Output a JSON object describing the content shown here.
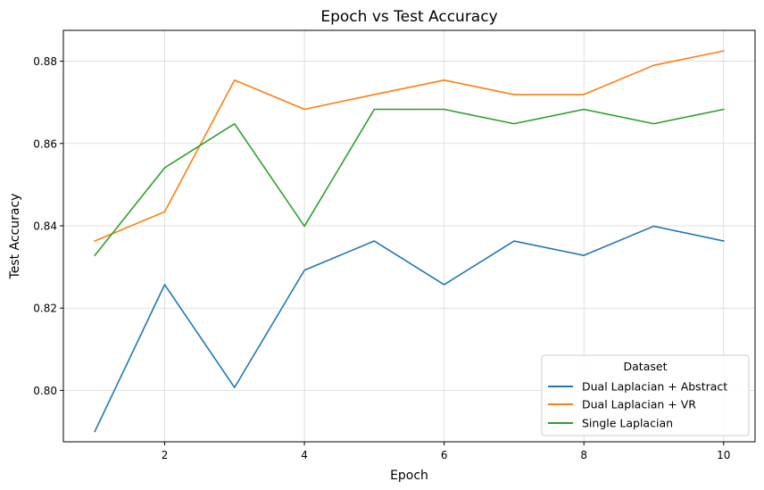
{
  "chart_data": {
    "type": "line",
    "title": "Epoch vs Test Accuracy",
    "xlabel": "Epoch",
    "ylabel": "Test Accuracy",
    "xlim": [
      0.55,
      10.45
    ],
    "ylim": [
      0.7875,
      0.8875
    ],
    "xticks": [
      2,
      4,
      6,
      8,
      10
    ],
    "yticks": [
      0.8,
      0.82,
      0.84,
      0.86,
      0.88
    ],
    "xtick_labels": [
      "2",
      "4",
      "6",
      "8",
      "10"
    ],
    "ytick_labels": [
      "0.80",
      "0.82",
      "0.84",
      "0.86",
      "0.88"
    ],
    "grid": true,
    "legend": {
      "title": "Dataset",
      "position": "lower-right"
    },
    "x": [
      1,
      2,
      3,
      4,
      5,
      6,
      7,
      8,
      9,
      10
    ],
    "series": [
      {
        "name": "Dual Laplacian + Abstract",
        "color": "#1f77b4",
        "values": [
          0.79,
          0.8257,
          0.8007,
          0.8292,
          0.8363,
          0.8257,
          0.8363,
          0.8328,
          0.8399,
          0.8363
        ]
      },
      {
        "name": "Dual Laplacian + VR",
        "color": "#ff7f0e",
        "values": [
          0.8363,
          0.8434,
          0.8754,
          0.8683,
          0.8719,
          0.8754,
          0.8719,
          0.8719,
          0.879,
          0.8825
        ]
      },
      {
        "name": "Single Laplacian",
        "color": "#2ca02c",
        "values": [
          0.8328,
          0.8541,
          0.8648,
          0.8399,
          0.8683,
          0.8683,
          0.8648,
          0.8683,
          0.8648,
          0.8683
        ]
      }
    ]
  }
}
